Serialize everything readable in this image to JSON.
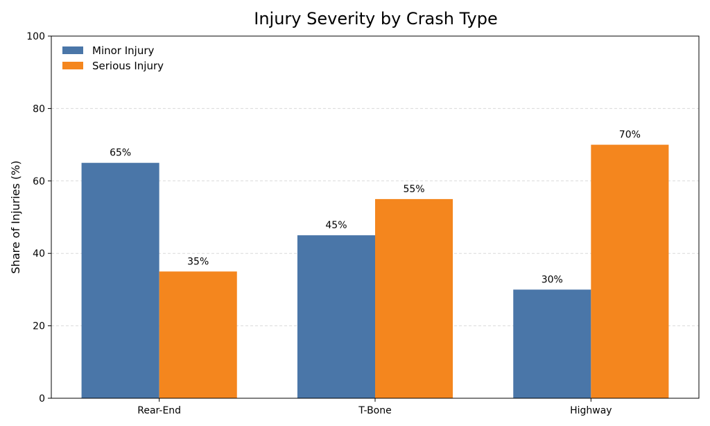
{
  "colors": {
    "minor": "#4a76a8",
    "serious": "#f4861e"
  },
  "chart_data": {
    "type": "bar",
    "title": "Injury Severity by Crash Type",
    "xlabel": "",
    "ylabel": "Share of Injuries (%)",
    "ylim": [
      0,
      100
    ],
    "yticks": [
      0,
      20,
      40,
      60,
      80,
      100
    ],
    "grid": true,
    "legend_placement": "top-left",
    "categories": [
      "Rear-End",
      "T-Bone",
      "Highway"
    ],
    "series": [
      {
        "name": "Minor Injury",
        "values": [
          65,
          45,
          30
        ],
        "labels": [
          "65%",
          "45%",
          "30%"
        ]
      },
      {
        "name": "Serious Injury",
        "values": [
          35,
          55,
          70
        ],
        "labels": [
          "35%",
          "55%",
          "70%"
        ]
      }
    ]
  }
}
